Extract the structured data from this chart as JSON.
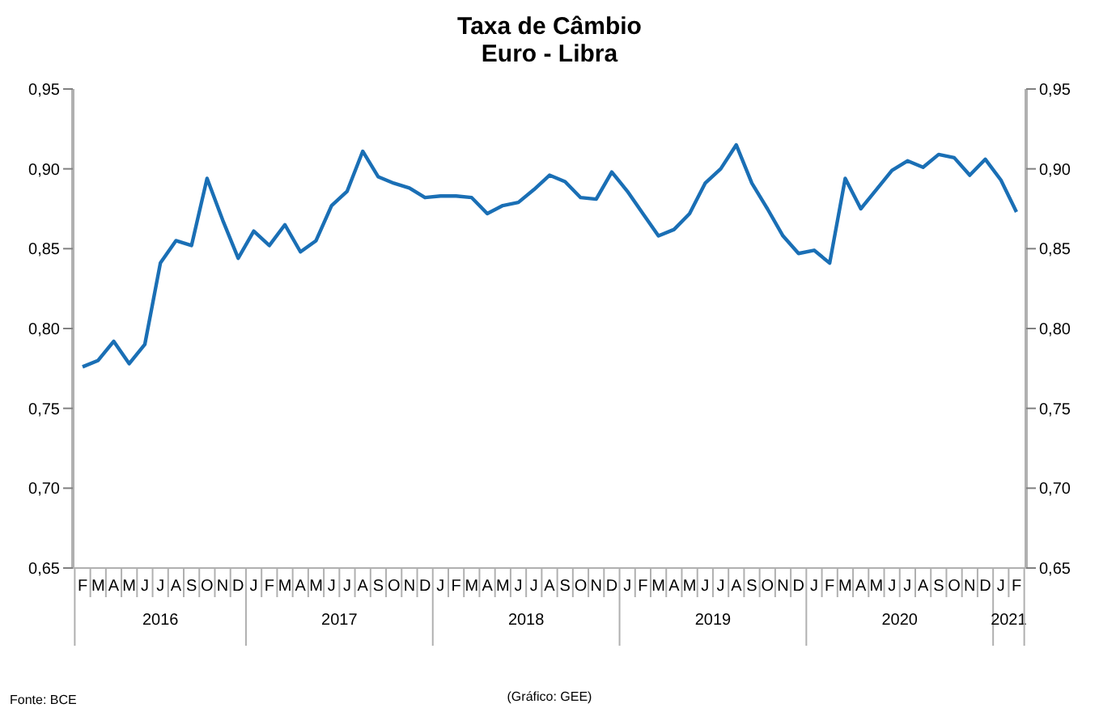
{
  "chart_data": {
    "type": "line",
    "title": "Taxa de Câmbio",
    "subtitle": "Euro - Libra",
    "categories": [
      "F",
      "M",
      "A",
      "M",
      "J",
      "J",
      "A",
      "S",
      "O",
      "N",
      "D",
      "J",
      "F",
      "M",
      "A",
      "M",
      "J",
      "J",
      "A",
      "S",
      "O",
      "N",
      "D",
      "J",
      "F",
      "M",
      "A",
      "M",
      "J",
      "J",
      "A",
      "S",
      "O",
      "N",
      "D",
      "J",
      "F",
      "M",
      "A",
      "M",
      "J",
      "J",
      "A",
      "S",
      "O",
      "N",
      "D",
      "J",
      "F",
      "M",
      "A",
      "M",
      "J",
      "J",
      "A",
      "S",
      "O",
      "N",
      "D",
      "J",
      "F"
    ],
    "series": [
      {
        "color": "#1a6fb5",
        "values": [
          0.776,
          0.78,
          0.792,
          0.778,
          0.79,
          0.841,
          0.855,
          0.852,
          0.894,
          0.868,
          0.844,
          0.861,
          0.852,
          0.865,
          0.848,
          0.855,
          0.877,
          0.886,
          0.911,
          0.895,
          0.891,
          0.888,
          0.882,
          0.883,
          0.883,
          0.882,
          0.872,
          0.877,
          0.879,
          0.887,
          0.896,
          0.892,
          0.882,
          0.881,
          0.898,
          0.886,
          0.872,
          0.858,
          0.862,
          0.872,
          0.891,
          0.9,
          0.915,
          0.891,
          0.875,
          0.858,
          0.847,
          0.849,
          0.841,
          0.894,
          0.875,
          0.887,
          0.899,
          0.905,
          0.901,
          0.909,
          0.907,
          0.896,
          0.906,
          0.893,
          0.873
        ]
      }
    ],
    "ylim": [
      0.65,
      0.95
    ],
    "yticks": [
      {
        "value": 0.65,
        "label": "0,65"
      },
      {
        "value": 0.7,
        "label": "0,70"
      },
      {
        "value": 0.75,
        "label": "0,75"
      },
      {
        "value": 0.8,
        "label": "0,80"
      },
      {
        "value": 0.85,
        "label": "0,85"
      },
      {
        "value": 0.9,
        "label": "0,90"
      },
      {
        "value": 0.95,
        "label": "0,95"
      }
    ],
    "y2lim": [
      0.65,
      0.95
    ],
    "y2ticks": [
      {
        "value": 0.65,
        "label": "0,65"
      },
      {
        "value": 0.7,
        "label": "0,70"
      },
      {
        "value": 0.75,
        "label": "0,75"
      },
      {
        "value": 0.8,
        "label": "0,80"
      },
      {
        "value": 0.85,
        "label": "0,85"
      },
      {
        "value": 0.9,
        "label": "0,90"
      },
      {
        "value": 0.95,
        "label": "0,95"
      }
    ],
    "annotations": [
      "2016",
      "2017",
      "2018",
      "2019",
      "2020",
      "2021",
      "Fonte: BCE",
      "(Gráfico: GEE)"
    ],
    "grid": false,
    "legend": false,
    "marker": "none",
    "line_style": "solid"
  }
}
